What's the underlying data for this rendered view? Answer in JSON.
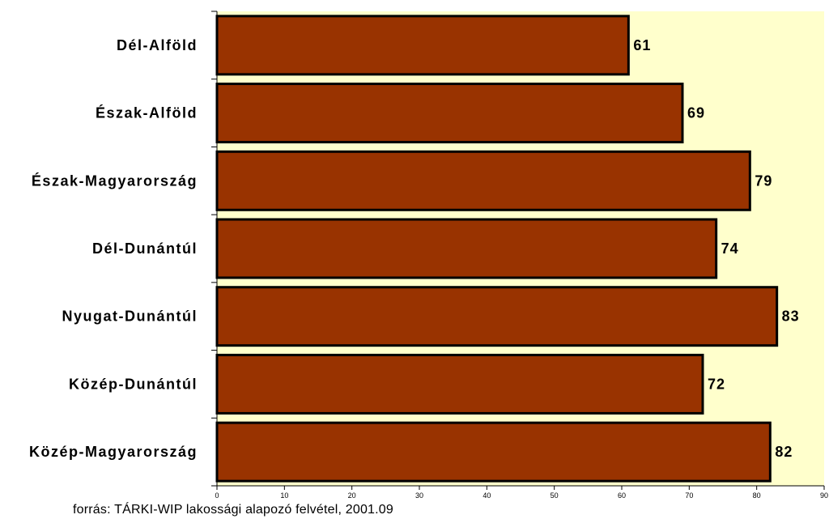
{
  "chart_data": {
    "type": "bar",
    "orientation": "horizontal",
    "categories": [
      "Dél-Alföld",
      "Észak-Alföld",
      "Észak-Magyarország",
      "Dél-Dunántúl",
      "Nyugat-Dunántúl",
      "Közép-Dunántúl",
      "Közép-Magyarország"
    ],
    "values": [
      61,
      69,
      79,
      74,
      83,
      72,
      82
    ],
    "xlim": [
      0,
      90
    ],
    "xticks": [
      0,
      10,
      20,
      30,
      40,
      50,
      60,
      70,
      80,
      90
    ],
    "grid": false,
    "legend": "none",
    "colors": {
      "bar": "#993300",
      "bar_border": "#000000",
      "plot_background": "#ffffcc"
    }
  },
  "source_note": "forrás: TÁRKI-WIP lakossági alapozó felvétel, 2001.09"
}
